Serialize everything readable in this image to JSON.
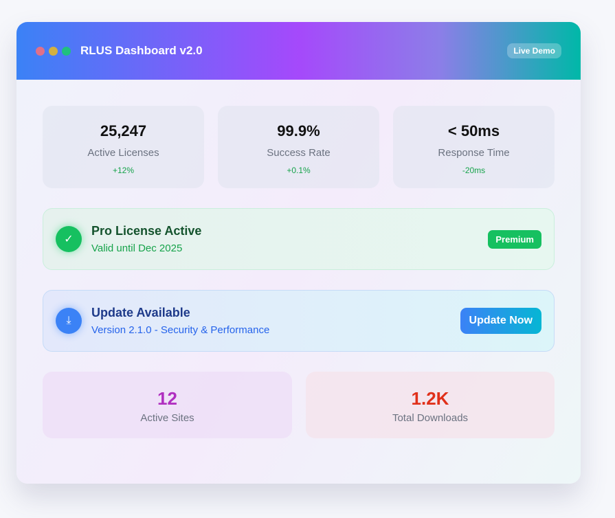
{
  "header": {
    "title": "RLUS Dashboard v2.0",
    "badge": "Live Demo",
    "dots": [
      "#e0708a",
      "#d4b040",
      "#20c080"
    ]
  },
  "stats": [
    {
      "value": "25,247",
      "label": "Active Licenses",
      "change": "+12%"
    },
    {
      "value": "99.9%",
      "label": "Success Rate",
      "change": "+0.1%"
    },
    {
      "value": "< 50ms",
      "label": "Response Time",
      "change": "-20ms"
    }
  ],
  "license": {
    "icon": "check-icon",
    "title": "Pro License Active",
    "subtitle": "Valid until Dec 2025",
    "badge": "Premium"
  },
  "update": {
    "icon": "download-icon",
    "title": "Update Available",
    "subtitle": "Version 2.1.0 - Security & Performance",
    "button": "Update Now"
  },
  "bottom": [
    {
      "value": "12",
      "label": "Active Sites",
      "color": "#b02fc0"
    },
    {
      "value": "1.2K",
      "label": "Total Downloads",
      "color": "#e0301a"
    }
  ]
}
